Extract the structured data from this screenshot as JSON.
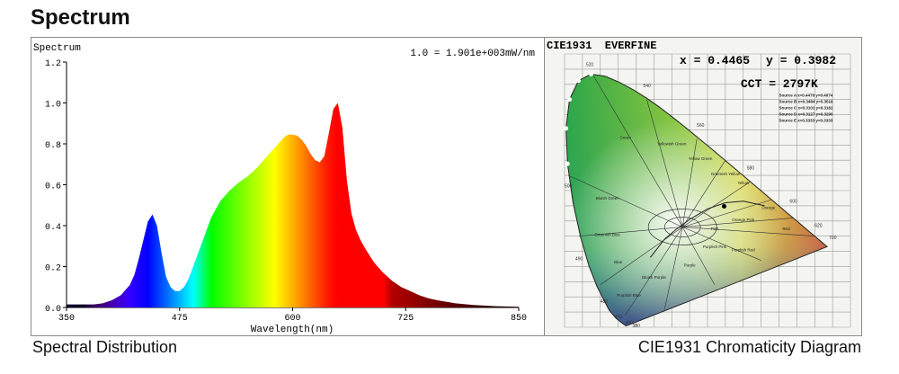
{
  "page_title": "Spectrum",
  "captions": {
    "left": "Spectral Distribution",
    "right": "CIE1931 Chromaticity Diagram"
  },
  "colors": {
    "frame": "#8a8a8a",
    "axis": "#000000"
  },
  "chart_data": [
    {
      "type": "area",
      "title": "Spectrum",
      "annotation": "1.0 = 1.901e+003mW/nm",
      "xlabel": "Wavelength(nm)",
      "ylabel": "Spectrum",
      "xlim": [
        350,
        850
      ],
      "ylim": [
        0,
        1.2
      ],
      "x_ticks": [
        350,
        475,
        600,
        725,
        850
      ],
      "x_tick_labels": [
        "350",
        "475",
        "600",
        "725",
        "850"
      ],
      "y_ticks": [
        0,
        0.2,
        0.4,
        0.6,
        0.8,
        1.0,
        1.2
      ],
      "y_tick_labels": [
        "0.0",
        "0.2",
        "0.4",
        "0.6",
        "0.8",
        "1.0",
        "1.2"
      ],
      "grid": false,
      "fill": "wavelength-color gradient",
      "x": [
        350,
        380,
        390,
        400,
        410,
        420,
        425,
        430,
        435,
        440,
        445,
        450,
        455,
        460,
        465,
        470,
        475,
        480,
        485,
        490,
        495,
        500,
        505,
        510,
        520,
        530,
        540,
        550,
        560,
        570,
        580,
        590,
        595,
        600,
        605,
        610,
        615,
        620,
        625,
        630,
        635,
        640,
        645,
        650,
        655,
        660,
        665,
        670,
        675,
        680,
        690,
        700,
        710,
        720,
        730,
        740,
        750,
        760,
        780,
        800,
        825,
        850
      ],
      "values": [
        0.015,
        0.015,
        0.02,
        0.035,
        0.06,
        0.11,
        0.16,
        0.24,
        0.33,
        0.42,
        0.455,
        0.4,
        0.27,
        0.15,
        0.1,
        0.08,
        0.08,
        0.1,
        0.14,
        0.2,
        0.26,
        0.32,
        0.38,
        0.44,
        0.52,
        0.57,
        0.61,
        0.64,
        0.68,
        0.73,
        0.78,
        0.83,
        0.845,
        0.845,
        0.84,
        0.82,
        0.79,
        0.75,
        0.72,
        0.71,
        0.74,
        0.85,
        0.97,
        1.0,
        0.88,
        0.62,
        0.46,
        0.38,
        0.33,
        0.29,
        0.22,
        0.17,
        0.13,
        0.1,
        0.08,
        0.06,
        0.045,
        0.035,
        0.02,
        0.012,
        0.006,
        0.003
      ]
    },
    {
      "type": "scatter",
      "title": "CIE1931  EVERFINE",
      "x_label_text": "x = 0.4465",
      "y_label_text": "y = 0.3982",
      "cct_text": "CCT = 2797K",
      "xlim": [
        0,
        0.8
      ],
      "ylim": [
        0,
        0.9
      ],
      "grid": true,
      "point": {
        "x": 0.4465,
        "y": 0.3982
      },
      "locus_labels": [
        "520",
        "540",
        "560",
        "580",
        "600",
        "620",
        "700",
        "500",
        "490",
        "480",
        "470",
        "460",
        "380"
      ],
      "region_labels": [
        "Green",
        "Yellowish Green",
        "Yellow Green",
        "Greenish Yellow",
        "Yellow",
        "Orange",
        "Red",
        "Purplish Red",
        "Purple",
        "Bluish Purple",
        "Blue",
        "Greenish Blue",
        "Bluish Green",
        "Pink",
        "Purplish Pink",
        "Orange Pink",
        "Purplish Blue"
      ],
      "sources": [
        "Source A x=0.4476 y=0.4074",
        "Source B x=0.3484 y=0.3516",
        "Source C x=0.3101 y=0.3162",
        "Source D x=0.3127 y=0.3290",
        "Source E x=0.3333 y=0.3333"
      ]
    }
  ]
}
